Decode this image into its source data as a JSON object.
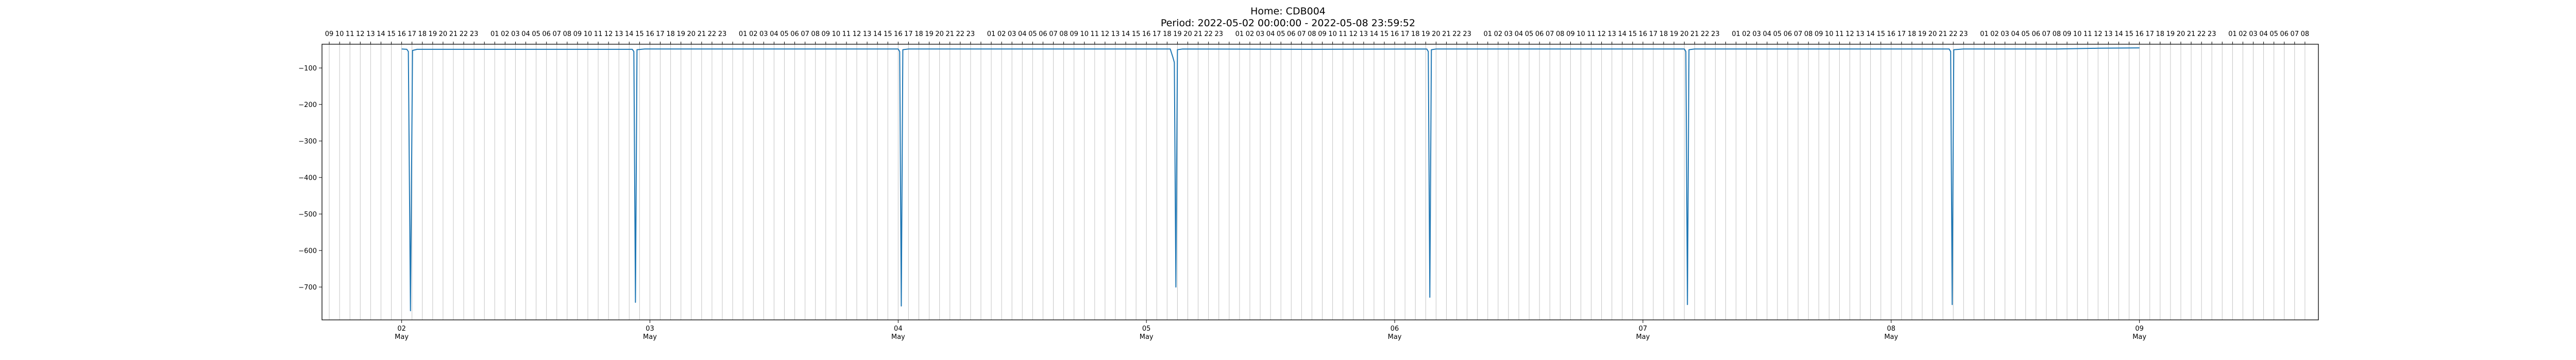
{
  "header": {
    "title_line1": "Home: CDB004",
    "title_line2": "Period: 2022-05-02 00:00:00 - 2022-05-08 23:59:52"
  },
  "chart_data": {
    "type": "line",
    "title": "Home: CDB004",
    "subtitle": "Period: 2022-05-02 00:00:00 - 2022-05-08 23:59:52",
    "xlabel": "",
    "ylabel": "",
    "x_range_hours": [
      -7.7,
      185.3
    ],
    "ylim": [
      -790,
      -35
    ],
    "grid": {
      "x_hourly": true,
      "y": false
    },
    "line_color": "#1f77b4",
    "x_major_ticks": [
      {
        "hour": 0,
        "day": "02",
        "month": "May"
      },
      {
        "hour": 24,
        "day": "03",
        "month": "May"
      },
      {
        "hour": 48,
        "day": "04",
        "month": "May"
      },
      {
        "hour": 72,
        "day": "05",
        "month": "May"
      },
      {
        "hour": 96,
        "day": "06",
        "month": "May"
      },
      {
        "hour": 120,
        "day": "07",
        "month": "May"
      },
      {
        "hour": 144,
        "day": "08",
        "month": "May"
      },
      {
        "hour": 168,
        "day": "09",
        "month": "May"
      }
    ],
    "y_ticks": [
      -100,
      -200,
      -300,
      -400,
      -500,
      -600,
      -700
    ],
    "top_hour_axis": {
      "first_hour": -8,
      "last_hour": 184,
      "labels": [
        "16",
        "17",
        "18",
        "19",
        "20",
        "21",
        "22",
        "23",
        "",
        "01",
        "02",
        "03",
        "04",
        "05",
        "06",
        "07",
        "08",
        "09",
        "10",
        "11",
        "12",
        "13",
        "14",
        "15"
      ]
    },
    "series": [
      {
        "values": [
          {
            "h": 0.0,
            "v": -48
          },
          {
            "h": 0.5,
            "v": -49
          },
          {
            "h": 0.65,
            "v": -55
          },
          {
            "h": 0.85,
            "v": -765
          },
          {
            "h": 1.05,
            "v": -52
          },
          {
            "h": 1.5,
            "v": -49
          },
          {
            "h": 12,
            "v": -49
          },
          {
            "h": 22.3,
            "v": -49
          },
          {
            "h": 22.45,
            "v": -55
          },
          {
            "h": 22.6,
            "v": -742
          },
          {
            "h": 22.75,
            "v": -50
          },
          {
            "h": 23.5,
            "v": -48
          },
          {
            "h": 36,
            "v": -48
          },
          {
            "h": 48.0,
            "v": -48
          },
          {
            "h": 48.15,
            "v": -55
          },
          {
            "h": 48.3,
            "v": -752
          },
          {
            "h": 48.45,
            "v": -50
          },
          {
            "h": 49,
            "v": -48
          },
          {
            "h": 62,
            "v": -48
          },
          {
            "h": 74.3,
            "v": -48
          },
          {
            "h": 74.55,
            "v": -70
          },
          {
            "h": 74.7,
            "v": -85
          },
          {
            "h": 74.85,
            "v": -700
          },
          {
            "h": 75.0,
            "v": -50
          },
          {
            "h": 75.5,
            "v": -48
          },
          {
            "h": 88,
            "v": -49
          },
          {
            "h": 99.1,
            "v": -48
          },
          {
            "h": 99.25,
            "v": -55
          },
          {
            "h": 99.4,
            "v": -728
          },
          {
            "h": 99.55,
            "v": -50
          },
          {
            "h": 100,
            "v": -48
          },
          {
            "h": 112,
            "v": -48
          },
          {
            "h": 124.0,
            "v": -48
          },
          {
            "h": 124.15,
            "v": -55
          },
          {
            "h": 124.3,
            "v": -748
          },
          {
            "h": 124.45,
            "v": -50
          },
          {
            "h": 125,
            "v": -48
          },
          {
            "h": 138,
            "v": -48
          },
          {
            "h": 149.6,
            "v": -48
          },
          {
            "h": 149.75,
            "v": -55
          },
          {
            "h": 149.9,
            "v": -748
          },
          {
            "h": 150.05,
            "v": -50
          },
          {
            "h": 151,
            "v": -48
          },
          {
            "h": 160,
            "v": -48
          },
          {
            "h": 164,
            "v": -46
          },
          {
            "h": 168,
            "v": -45
          }
        ]
      }
    ]
  }
}
